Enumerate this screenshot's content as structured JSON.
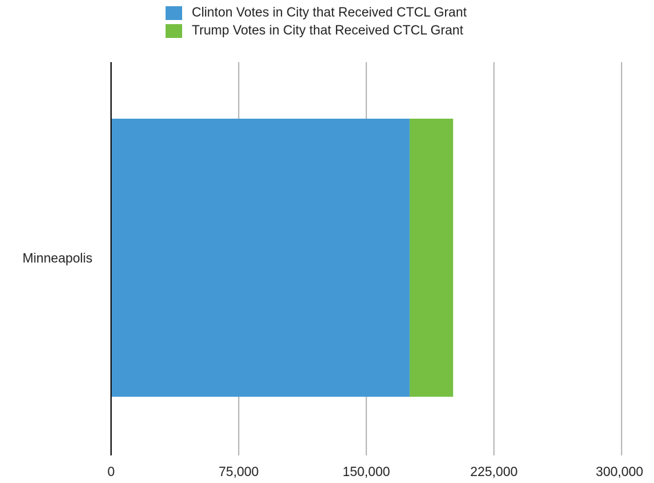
{
  "chart_data": {
    "type": "bar",
    "orientation": "horizontal",
    "stacked": true,
    "categories": [
      "Minneapolis"
    ],
    "series": [
      {
        "name": "Clinton Votes in City that Received CTCL Grant",
        "values": [
          175500
        ],
        "color": "#4499d4"
      },
      {
        "name": "Trump Votes in City that Received CTCL Grant",
        "values": [
          25500
        ],
        "color": "#76bf43"
      }
    ],
    "title": "",
    "xlabel": "",
    "ylabel": "",
    "xlim": [
      0,
      300000
    ],
    "xticks": [
      0,
      75000,
      150000,
      225000,
      300000
    ],
    "xtick_labels": [
      "0",
      "75,000",
      "150,000",
      "225,000",
      "300,000"
    ],
    "grid": true,
    "legend_position": "top"
  }
}
